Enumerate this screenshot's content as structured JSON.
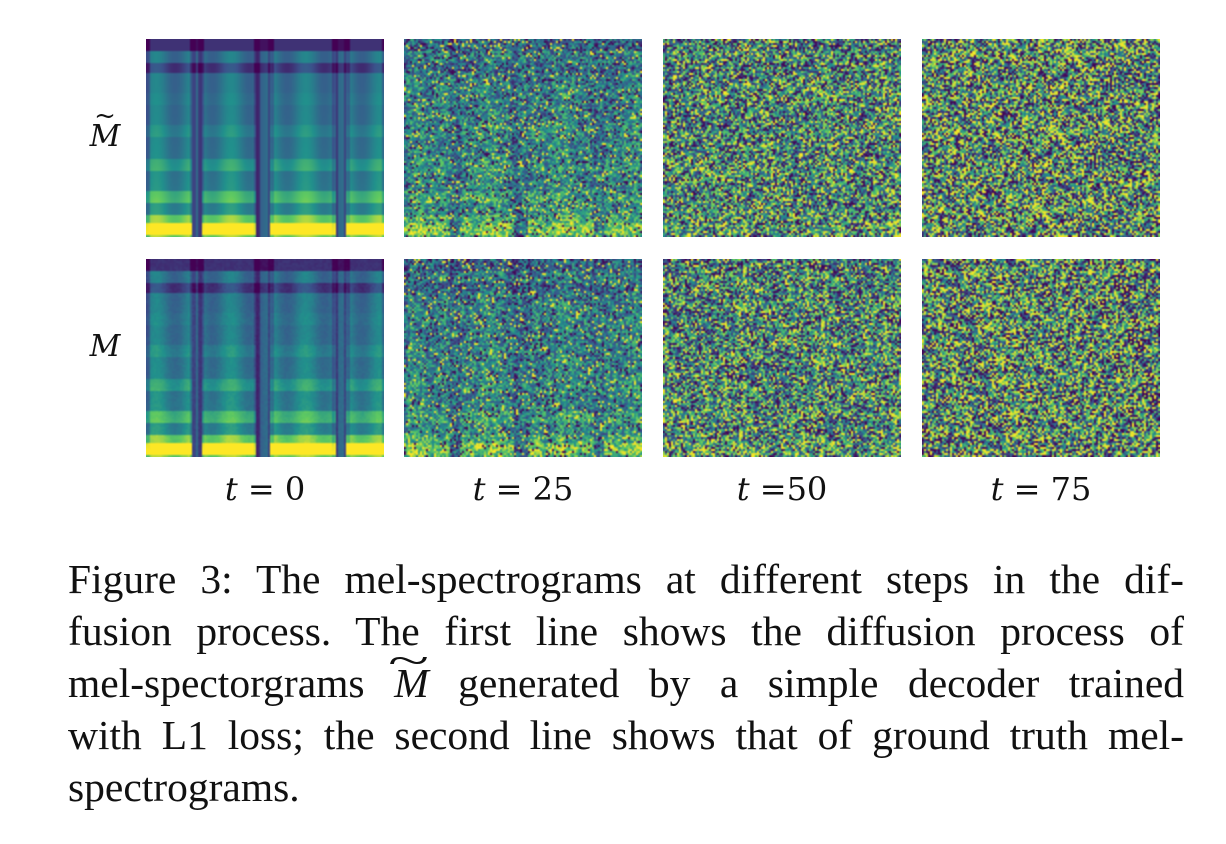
{
  "figure": {
    "row_labels": [
      {
        "symbol": "M",
        "accent": "~"
      },
      {
        "symbol": "M",
        "accent": ""
      }
    ],
    "step_labels": [
      {
        "var": "t",
        "text": " = 0"
      },
      {
        "var": "t",
        "text": " = 25"
      },
      {
        "var": "t",
        "text": " =50"
      },
      {
        "var": "t",
        "text": " = 75"
      }
    ],
    "colormap": [
      "#440154",
      "#3b528b",
      "#21918c",
      "#5ec962",
      "#fde725"
    ],
    "noise_levels": [
      0,
      0.55,
      0.85,
      0.97
    ]
  },
  "caption": {
    "line1": "Figure 3: The mel-spectrograms at different steps in the dif-",
    "line2": "fusion process. The first line shows the diffusion process of",
    "line3_pre": "mel-spectorgrams ",
    "line3_sym": "M",
    "line3_post": " generated by a simple decoder trained",
    "line4": "with L1 loss; the second line shows that of ground truth mel-",
    "line5": "spectrograms."
  }
}
